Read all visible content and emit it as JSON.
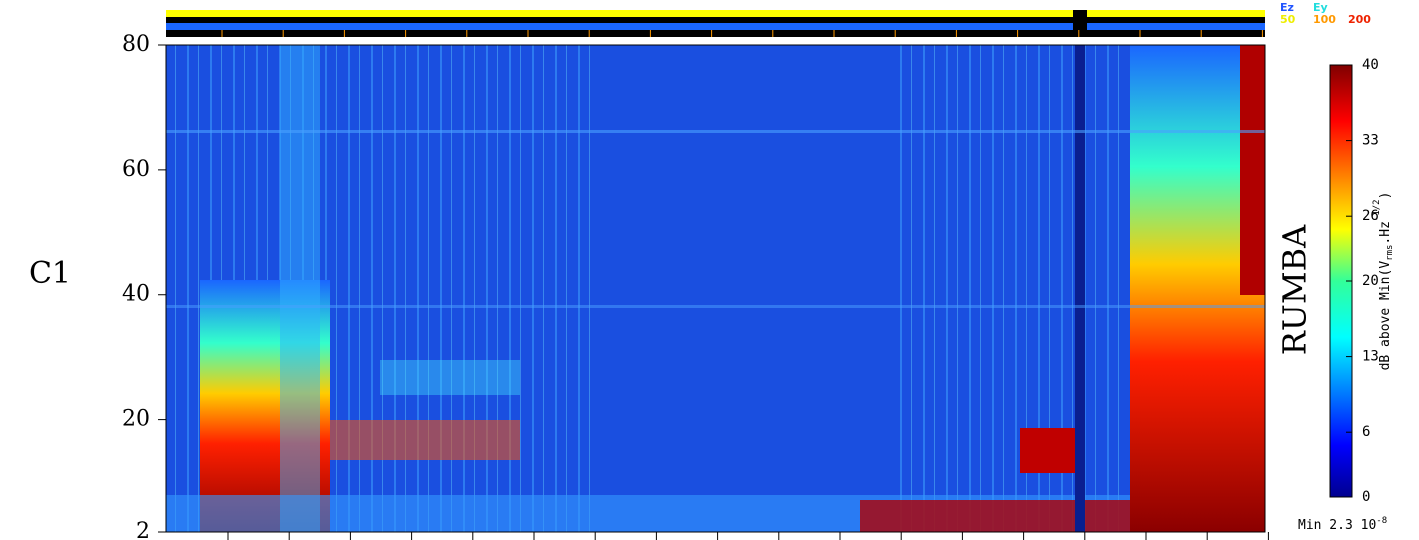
{
  "chart_data": {
    "type": "spectrogram",
    "panel_label": "C1",
    "instrument_label": "RUMBA",
    "ylim": [
      2,
      80
    ],
    "yticks": [
      2,
      20,
      40,
      60,
      80
    ],
    "colorbar": {
      "lim": [
        0,
        40
      ],
      "ticks": [
        0,
        6,
        13,
        20,
        26,
        33,
        40
      ],
      "label_parts": [
        "dB above Min(V",
        "rms",
        ".Hz",
        "-1/2",
        ")"
      ]
    },
    "min_label_parts": [
      "Min 2.3 10",
      "-8"
    ],
    "legend": [
      {
        "name": "Ez",
        "color": "#2255ff"
      },
      {
        "name": "Ey",
        "color": "#22dddd"
      },
      {
        "name": "50",
        "color": "#eeee00"
      },
      {
        "name": "100",
        "color": "#ff9900"
      },
      {
        "name": "200",
        "color": "#ee2200"
      }
    ]
  }
}
